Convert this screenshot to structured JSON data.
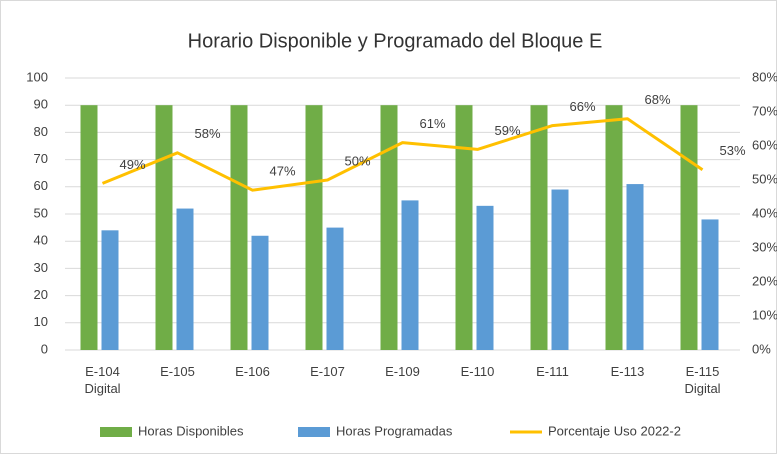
{
  "chart_data": {
    "type": "bar",
    "title": "Horario Disponible y Programado del Bloque E",
    "categories": [
      "E-104 Digital",
      "E-105",
      "E-106",
      "E-107",
      "E-109",
      "E-110",
      "E-111",
      "E-113",
      "E-115 Digital"
    ],
    "series": [
      {
        "name": "Horas Disponibles",
        "type": "bar",
        "color": "#70ad47",
        "values": [
          90,
          90,
          90,
          90,
          90,
          90,
          90,
          90,
          90
        ]
      },
      {
        "name": "Horas Programadas",
        "type": "bar",
        "color": "#5b9bd5",
        "values": [
          44,
          52,
          42,
          45,
          55,
          53,
          59,
          61,
          48
        ]
      },
      {
        "name": "Porcentaje Uso 2022-2",
        "type": "line",
        "axis": "y2",
        "color": "#ffc000",
        "values": [
          49,
          58,
          47,
          50,
          61,
          59,
          66,
          68,
          53
        ],
        "value_labels": [
          "49%",
          "58%",
          "47%",
          "50%",
          "61%",
          "59%",
          "66%",
          "68%",
          "53%"
        ]
      }
    ],
    "ylim": [
      0,
      100
    ],
    "yticks": [
      0,
      10,
      20,
      30,
      40,
      50,
      60,
      70,
      80,
      90,
      100
    ],
    "y2lim": [
      0,
      80
    ],
    "y2ticks": [
      {
        "value": 0,
        "label": "0%"
      },
      {
        "value": 10,
        "label": "10%"
      },
      {
        "value": 20,
        "label": "20%"
      },
      {
        "value": 30,
        "label": "30%"
      },
      {
        "value": 40,
        "label": "40%"
      },
      {
        "value": 50,
        "label": "50%"
      },
      {
        "value": 60,
        "label": "60%"
      },
      {
        "value": 70,
        "label": "70%"
      },
      {
        "value": 80,
        "label": "80%"
      }
    ],
    "grid": true,
    "legend": "bottom"
  }
}
